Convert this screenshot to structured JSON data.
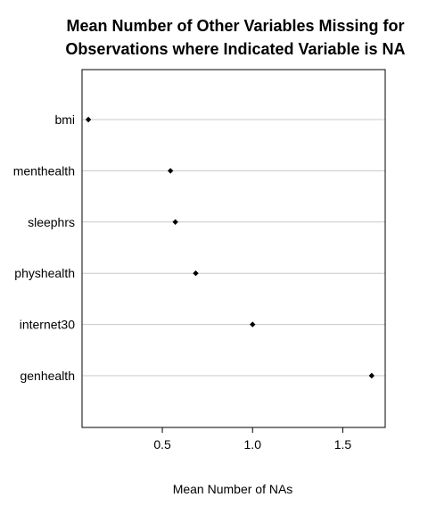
{
  "chart_data": {
    "type": "scatter",
    "title_lines": [
      "Mean Number of Other Variables Missing for",
      "Observations where Indicated Variable is NA"
    ],
    "xlabel": "Mean Number of NAs",
    "ylabel": "",
    "categories": [
      "bmi",
      "menthealth",
      "sleephrs",
      "physhealth",
      "internet30",
      "genhealth"
    ],
    "values": [
      0.09,
      0.545,
      0.572,
      0.685,
      1.0,
      1.66
    ],
    "xlim": [
      0.055,
      1.735
    ],
    "xticks": [
      {
        "value": 0.5,
        "label": "0.5"
      },
      {
        "value": 1.0,
        "label": "1.0"
      },
      {
        "value": 1.5,
        "label": "1.5"
      }
    ],
    "grid": "horizontal",
    "legend": "none",
    "colors": {
      "points": "#000000",
      "gridlines": "#c8c8c8",
      "frame": "#000000"
    }
  }
}
